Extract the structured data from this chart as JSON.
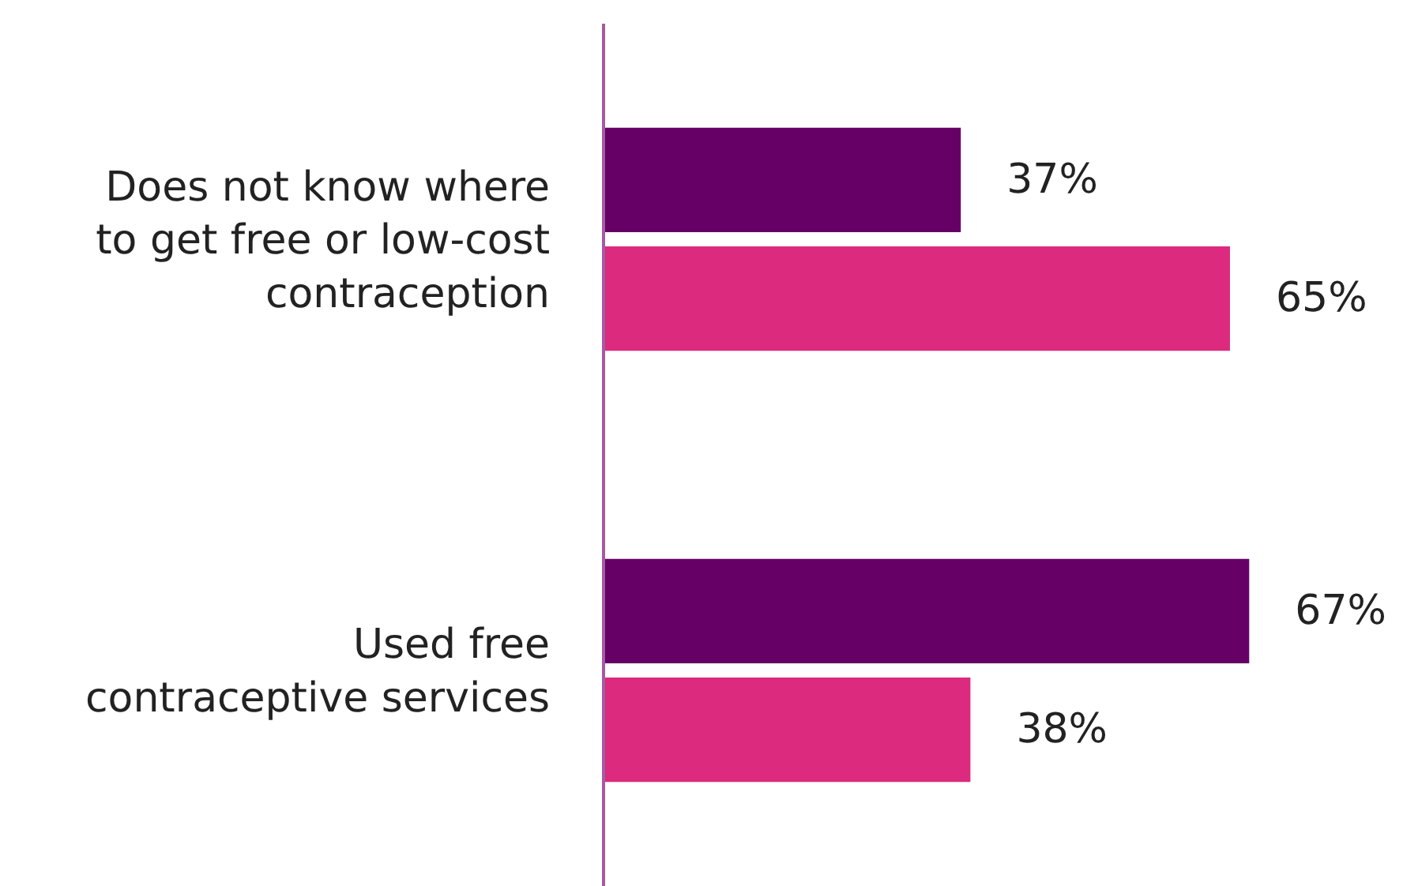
{
  "chart_data": {
    "type": "bar",
    "orientation": "horizontal",
    "categories": [
      "Does not know where\nto get free or low-cost\ncontraception",
      "Used free\ncontraceptive services"
    ],
    "series": [
      {
        "color": "#660066",
        "values": [
          37,
          67
        ],
        "value_labels": [
          "37%",
          "67%"
        ]
      },
      {
        "color": "#dc2a7e",
        "values": [
          65,
          38
        ],
        "value_labels": [
          "65%",
          "38%"
        ]
      }
    ],
    "xlim": [
      0,
      83
    ],
    "tick_labels": "y"
  }
}
